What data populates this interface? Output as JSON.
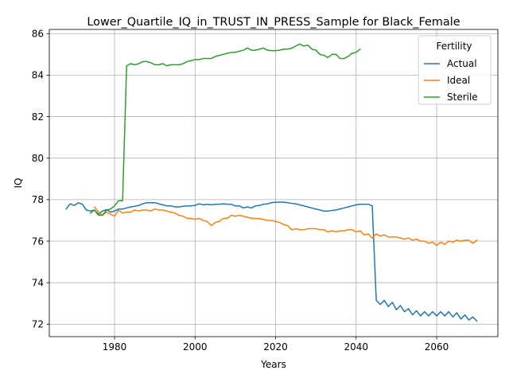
{
  "chart_data": {
    "type": "line",
    "title": "Lower_Quartile_IQ_in_TRUST_IN_PRESS_Sample for Black_Female",
    "xlabel": "Years",
    "ylabel": "IQ",
    "xlim": [
      1963.8,
      2075.2
    ],
    "ylim": [
      71.4,
      86.2
    ],
    "xticks": [
      1980,
      2000,
      2020,
      2040,
      2060
    ],
    "yticks": [
      72,
      74,
      76,
      78,
      80,
      82,
      84,
      86
    ],
    "grid": true,
    "legend": {
      "title": "Fertility",
      "position": "upper right"
    },
    "series": [
      {
        "name": "Actual",
        "color": "#1f77b4",
        "points": [
          [
            1968,
            77.55
          ],
          [
            1969,
            77.8
          ],
          [
            1970,
            77.72
          ],
          [
            1971,
            77.85
          ],
          [
            1972,
            77.78
          ],
          [
            1973,
            77.5
          ],
          [
            1974,
            77.45
          ],
          [
            1975,
            77.5
          ],
          [
            1976,
            77.3
          ],
          [
            1977,
            77.45
          ],
          [
            1978,
            77.52
          ],
          [
            1979,
            77.4
          ],
          [
            1980,
            77.45
          ],
          [
            1981,
            77.55
          ],
          [
            1982,
            77.55
          ],
          [
            1983,
            77.6
          ],
          [
            1984,
            77.65
          ],
          [
            1985,
            77.68
          ],
          [
            1986,
            77.72
          ],
          [
            1987,
            77.8
          ],
          [
            1988,
            77.85
          ],
          [
            1989,
            77.85
          ],
          [
            1990,
            77.85
          ],
          [
            1991,
            77.8
          ],
          [
            1992,
            77.75
          ],
          [
            1993,
            77.7
          ],
          [
            1994,
            77.7
          ],
          [
            1995,
            77.65
          ],
          [
            1996,
            77.65
          ],
          [
            1997,
            77.68
          ],
          [
            1998,
            77.7
          ],
          [
            1999,
            77.7
          ],
          [
            2000,
            77.72
          ],
          [
            2001,
            77.8
          ],
          [
            2002,
            77.75
          ],
          [
            2003,
            77.78
          ],
          [
            2004,
            77.75
          ],
          [
            2005,
            77.78
          ],
          [
            2006,
            77.78
          ],
          [
            2007,
            77.8
          ],
          [
            2008,
            77.78
          ],
          [
            2009,
            77.78
          ],
          [
            2010,
            77.7
          ],
          [
            2011,
            77.7
          ],
          [
            2012,
            77.6
          ],
          [
            2013,
            77.65
          ],
          [
            2014,
            77.6
          ],
          [
            2015,
            77.7
          ],
          [
            2016,
            77.72
          ],
          [
            2017,
            77.78
          ],
          [
            2018,
            77.8
          ],
          [
            2019,
            77.85
          ],
          [
            2020,
            77.88
          ],
          [
            2021,
            77.88
          ],
          [
            2022,
            77.88
          ],
          [
            2023,
            77.85
          ],
          [
            2024,
            77.82
          ],
          [
            2025,
            77.8
          ],
          [
            2026,
            77.75
          ],
          [
            2027,
            77.7
          ],
          [
            2028,
            77.65
          ],
          [
            2029,
            77.6
          ],
          [
            2030,
            77.55
          ],
          [
            2031,
            77.5
          ],
          [
            2032,
            77.45
          ],
          [
            2033,
            77.45
          ],
          [
            2034,
            77.48
          ],
          [
            2035,
            77.5
          ],
          [
            2036,
            77.55
          ],
          [
            2037,
            77.6
          ],
          [
            2038,
            77.65
          ],
          [
            2039,
            77.7
          ],
          [
            2040,
            77.75
          ],
          [
            2041,
            77.78
          ],
          [
            2042,
            77.78
          ],
          [
            2043,
            77.78
          ],
          [
            2044,
            77.7
          ],
          [
            2045,
            73.15
          ],
          [
            2046,
            72.95
          ],
          [
            2047,
            73.15
          ],
          [
            2048,
            72.85
          ],
          [
            2049,
            73.05
          ],
          [
            2050,
            72.7
          ],
          [
            2051,
            72.9
          ],
          [
            2052,
            72.6
          ],
          [
            2053,
            72.75
          ],
          [
            2054,
            72.45
          ],
          [
            2055,
            72.65
          ],
          [
            2056,
            72.4
          ],
          [
            2057,
            72.6
          ],
          [
            2058,
            72.4
          ],
          [
            2059,
            72.6
          ],
          [
            2060,
            72.4
          ],
          [
            2061,
            72.6
          ],
          [
            2062,
            72.4
          ],
          [
            2063,
            72.6
          ],
          [
            2064,
            72.35
          ],
          [
            2065,
            72.55
          ],
          [
            2066,
            72.25
          ],
          [
            2067,
            72.45
          ],
          [
            2068,
            72.2
          ],
          [
            2069,
            72.35
          ],
          [
            2070,
            72.15
          ]
        ]
      },
      {
        "name": "Ideal",
        "color": "#ff7f0e",
        "points": [
          [
            1975,
            77.65
          ],
          [
            1976,
            77.4
          ],
          [
            1977,
            77.25
          ],
          [
            1978,
            77.4
          ],
          [
            1979,
            77.3
          ],
          [
            1980,
            77.2
          ],
          [
            1981,
            77.5
          ],
          [
            1982,
            77.35
          ],
          [
            1983,
            77.4
          ],
          [
            1984,
            77.4
          ],
          [
            1985,
            77.5
          ],
          [
            1986,
            77.45
          ],
          [
            1987,
            77.5
          ],
          [
            1988,
            77.5
          ],
          [
            1989,
            77.45
          ],
          [
            1990,
            77.55
          ],
          [
            1991,
            77.5
          ],
          [
            1992,
            77.5
          ],
          [
            1993,
            77.45
          ],
          [
            1994,
            77.4
          ],
          [
            1995,
            77.35
          ],
          [
            1996,
            77.25
          ],
          [
            1997,
            77.2
          ],
          [
            1998,
            77.1
          ],
          [
            1999,
            77.1
          ],
          [
            2000,
            77.05
          ],
          [
            2001,
            77.1
          ],
          [
            2002,
            77.0
          ],
          [
            2003,
            76.95
          ],
          [
            2004,
            76.75
          ],
          [
            2005,
            76.9
          ],
          [
            2006,
            76.95
          ],
          [
            2007,
            77.1
          ],
          [
            2008,
            77.1
          ],
          [
            2009,
            77.25
          ],
          [
            2010,
            77.2
          ],
          [
            2011,
            77.25
          ],
          [
            2012,
            77.2
          ],
          [
            2013,
            77.15
          ],
          [
            2014,
            77.1
          ],
          [
            2015,
            77.1
          ],
          [
            2016,
            77.08
          ],
          [
            2017,
            77.05
          ],
          [
            2018,
            77.0
          ],
          [
            2019,
            77.0
          ],
          [
            2020,
            76.95
          ],
          [
            2021,
            76.9
          ],
          [
            2022,
            76.8
          ],
          [
            2023,
            76.75
          ],
          [
            2024,
            76.55
          ],
          [
            2025,
            76.6
          ],
          [
            2026,
            76.55
          ],
          [
            2027,
            76.55
          ],
          [
            2028,
            76.6
          ],
          [
            2029,
            76.6
          ],
          [
            2030,
            76.6
          ],
          [
            2031,
            76.55
          ],
          [
            2032,
            76.55
          ],
          [
            2033,
            76.45
          ],
          [
            2034,
            76.5
          ],
          [
            2035,
            76.45
          ],
          [
            2036,
            76.5
          ],
          [
            2037,
            76.5
          ],
          [
            2038,
            76.55
          ],
          [
            2039,
            76.55
          ],
          [
            2040,
            76.45
          ],
          [
            2041,
            76.5
          ],
          [
            2042,
            76.3
          ],
          [
            2043,
            76.35
          ],
          [
            2044,
            76.15
          ],
          [
            2045,
            76.35
          ],
          [
            2046,
            76.25
          ],
          [
            2047,
            76.3
          ],
          [
            2048,
            76.2
          ],
          [
            2049,
            76.2
          ],
          [
            2050,
            76.2
          ],
          [
            2051,
            76.15
          ],
          [
            2052,
            76.1
          ],
          [
            2053,
            76.15
          ],
          [
            2054,
            76.05
          ],
          [
            2055,
            76.1
          ],
          [
            2056,
            76.0
          ],
          [
            2057,
            76.0
          ],
          [
            2058,
            75.9
          ],
          [
            2059,
            75.95
          ],
          [
            2060,
            75.8
          ],
          [
            2061,
            75.95
          ],
          [
            2062,
            75.85
          ],
          [
            2063,
            76.0
          ],
          [
            2064,
            75.95
          ],
          [
            2065,
            76.05
          ],
          [
            2066,
            76.0
          ],
          [
            2067,
            76.05
          ],
          [
            2068,
            76.05
          ],
          [
            2069,
            75.9
          ],
          [
            2070,
            76.05
          ]
        ]
      },
      {
        "name": "Sterile",
        "color": "#2ca02c",
        "points": [
          [
            1974,
            77.35
          ],
          [
            1975,
            77.5
          ],
          [
            1976,
            77.25
          ],
          [
            1977,
            77.25
          ],
          [
            1978,
            77.5
          ],
          [
            1979,
            77.55
          ],
          [
            1980,
            77.7
          ],
          [
            1981,
            77.95
          ],
          [
            1982,
            77.95
          ],
          [
            1983,
            84.45
          ],
          [
            1984,
            84.55
          ],
          [
            1985,
            84.5
          ],
          [
            1986,
            84.55
          ],
          [
            1987,
            84.65
          ],
          [
            1988,
            84.65
          ],
          [
            1989,
            84.6
          ],
          [
            1990,
            84.5
          ],
          [
            1991,
            84.5
          ],
          [
            1992,
            84.55
          ],
          [
            1993,
            84.45
          ],
          [
            1994,
            84.5
          ],
          [
            1995,
            84.5
          ],
          [
            1996,
            84.5
          ],
          [
            1997,
            84.55
          ],
          [
            1998,
            84.65
          ],
          [
            1999,
            84.7
          ],
          [
            2000,
            84.75
          ],
          [
            2001,
            84.75
          ],
          [
            2002,
            84.8
          ],
          [
            2003,
            84.8
          ],
          [
            2004,
            84.8
          ],
          [
            2005,
            84.9
          ],
          [
            2006,
            84.95
          ],
          [
            2007,
            85.0
          ],
          [
            2008,
            85.05
          ],
          [
            2009,
            85.1
          ],
          [
            2010,
            85.1
          ],
          [
            2011,
            85.15
          ],
          [
            2012,
            85.2
          ],
          [
            2013,
            85.3
          ],
          [
            2014,
            85.2
          ],
          [
            2015,
            85.2
          ],
          [
            2016,
            85.25
          ],
          [
            2017,
            85.3
          ],
          [
            2018,
            85.2
          ],
          [
            2019,
            85.18
          ],
          [
            2020,
            85.18
          ],
          [
            2021,
            85.2
          ],
          [
            2022,
            85.25
          ],
          [
            2023,
            85.25
          ],
          [
            2024,
            85.3
          ],
          [
            2025,
            85.4
          ],
          [
            2026,
            85.5
          ],
          [
            2027,
            85.4
          ],
          [
            2028,
            85.45
          ],
          [
            2029,
            85.25
          ],
          [
            2030,
            85.2
          ],
          [
            2031,
            85.0
          ],
          [
            2032,
            84.95
          ],
          [
            2033,
            84.85
          ],
          [
            2034,
            85.0
          ],
          [
            2035,
            85.0
          ],
          [
            2036,
            84.8
          ],
          [
            2037,
            84.8
          ],
          [
            2038,
            84.9
          ],
          [
            2039,
            85.05
          ],
          [
            2040,
            85.1
          ],
          [
            2041,
            85.25
          ]
        ]
      }
    ]
  }
}
